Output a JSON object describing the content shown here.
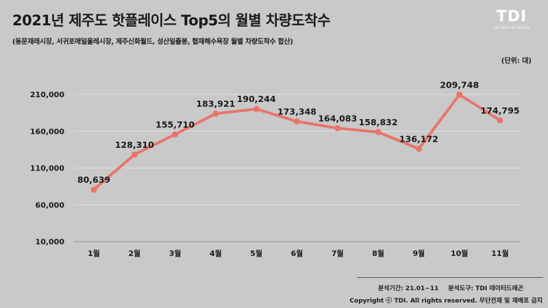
{
  "title": "2021년 제주도 핫플레이스 Top5의 월별 차량도착수",
  "subtitle": "(동문재래시장, 서귀포매일올레시장, 제주신화월드, 성산일출봉, 협재해수욕장 월별 차량도착수 합산)",
  "unit_label": "(단위: 대)",
  "logo": {
    "mark": "TDI",
    "tagline": "THE DATA INCUBATOR"
  },
  "footer": {
    "period": "분석기간: 21.01~11",
    "tool": "분석도구: TDI 데이터드래곤",
    "copyright": "Copyright ⓒ TDI. All rights reserved. 무단전재 및 재배포 금지"
  },
  "colors": {
    "line": "#e8756b",
    "gridline": "#e0e0e0",
    "axis": "#8a8a8a",
    "background": "#c9c9c9"
  },
  "chart_data": {
    "type": "line",
    "categories": [
      "1월",
      "2월",
      "3월",
      "4월",
      "5월",
      "6월",
      "7월",
      "8월",
      "9월",
      "10월",
      "11월"
    ],
    "values": [
      80639,
      128310,
      155710,
      183921,
      190244,
      173348,
      164083,
      158832,
      136172,
      209748,
      174795
    ],
    "value_labels": [
      "80,639",
      "128,310",
      "155,710",
      "183,921",
      "190,244",
      "173,348",
      "164,083",
      "158,832",
      "136,172",
      "209,748",
      "174,795"
    ],
    "y_ticks": [
      10000,
      60000,
      110000,
      160000,
      210000
    ],
    "y_tick_labels": [
      "10,000",
      "60,000",
      "110,000",
      "160,000",
      "210,000"
    ],
    "ylim": [
      10000,
      210000
    ],
    "grid": true,
    "legend": "none"
  }
}
